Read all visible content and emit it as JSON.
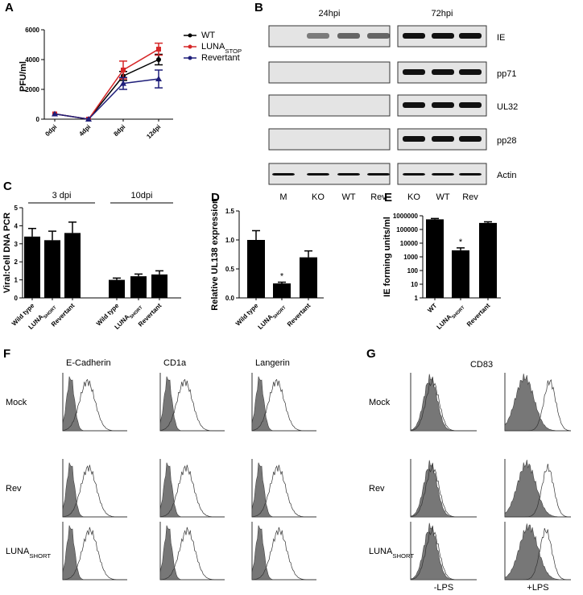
{
  "chart_data": [
    {
      "label": "A",
      "type": "line",
      "ylabel": "PFU/ml",
      "categories": [
        "0dpi",
        "4dpi",
        "8dpi",
        "12dpi"
      ],
      "ylim": [
        0,
        6000
      ],
      "yticks": [
        0,
        2000,
        4000,
        6000
      ],
      "series": [
        {
          "name": "WT",
          "color": "#000000",
          "marker": "circle",
          "values": [
            350,
            0,
            2900,
            4000
          ],
          "errors": [
            0,
            0,
            300,
            350
          ]
        },
        {
          "name": "LUNA",
          "name_subscript": "STOP",
          "color": "#d62728",
          "marker": "square",
          "values": [
            350,
            0,
            3300,
            4700
          ],
          "errors": [
            0,
            0,
            600,
            400
          ]
        },
        {
          "name": "Revertant",
          "color": "#1f1f7a",
          "marker": "triangle",
          "values": [
            350,
            0,
            2400,
            2700
          ],
          "errors": [
            0,
            0,
            400,
            600
          ]
        }
      ]
    },
    {
      "label": "C",
      "type": "bar",
      "ylabel": "Viral:Cell DNA PCR",
      "color": "#000000",
      "group_labels": [
        "3 dpi",
        "10dpi"
      ],
      "categories": [
        "Wild type",
        "LUNA",
        "Revertant",
        "Wild type",
        "LUNA",
        "Revertant"
      ],
      "category_subscripts": [
        null,
        "SHORT",
        null,
        null,
        "SHORT",
        null
      ],
      "values": [
        3.4,
        3.2,
        3.6,
        1.0,
        1.2,
        1.3
      ],
      "errors": [
        0.45,
        0.5,
        0.6,
        0.1,
        0.12,
        0.2
      ],
      "ylim": [
        0,
        5
      ],
      "yticks": [
        0,
        1,
        2,
        3,
        4,
        5
      ]
    },
    {
      "label": "D",
      "type": "bar",
      "ylabel": "Relative UL138 expression",
      "color": "#000000",
      "categories": [
        "Wild type",
        "LUNA",
        "Revertant"
      ],
      "category_subscripts": [
        null,
        "SHORT",
        null
      ],
      "values": [
        1.0,
        0.25,
        0.7
      ],
      "errors": [
        0.16,
        0.02,
        0.11
      ],
      "annotations": [
        null,
        "*",
        null
      ],
      "ylim": [
        0,
        1.5
      ],
      "yticks": [
        {
          "value": 0,
          "label": "0.0"
        },
        {
          "value": 0.5,
          "label": "0.5"
        },
        {
          "value": 1,
          "label": "1.0"
        },
        {
          "value": 1.5,
          "label": "1.5"
        }
      ]
    },
    {
      "label": "E",
      "type": "bar",
      "ylabel": "IE forming units/ml",
      "color": "#000000",
      "log_scale": true,
      "categories": [
        "WT",
        "LUNA",
        "Revertant"
      ],
      "category_subscripts": [
        null,
        "SHORT",
        null
      ],
      "values": [
        550000,
        3000,
        300000
      ],
      "errors": [
        80000,
        1500,
        60000
      ],
      "annotations": [
        null,
        "*",
        null
      ],
      "ylim": [
        1,
        1000000
      ],
      "yticks": [
        1,
        10,
        100,
        1000,
        10000,
        100000,
        1000000
      ]
    }
  ],
  "blot": {
    "label": "B",
    "timepoints": [
      "24hpi",
      "72hpi"
    ],
    "proteins": [
      "IE",
      "pp71",
      "UL32",
      "pp28",
      "Actin"
    ],
    "lanes": [
      [
        "M",
        "KO",
        "WT",
        "Rev"
      ],
      [
        "KO",
        "WT",
        "Rev"
      ]
    ]
  },
  "flow_f": {
    "label": "F",
    "markers": [
      "E-Cadherin",
      "CD1a",
      "Langerin"
    ],
    "samples": [
      "Mock",
      "Rev",
      "LUNA"
    ],
    "sample_subscripts": [
      null,
      null,
      "SHORT"
    ]
  },
  "flow_g": {
    "label": "G",
    "marker": "CD83",
    "conditions": [
      "-LPS",
      "+LPS"
    ],
    "samples": [
      "Mock",
      "Rev",
      "LUNA"
    ],
    "sample_subscripts": [
      null,
      null,
      "SHORT"
    ]
  }
}
